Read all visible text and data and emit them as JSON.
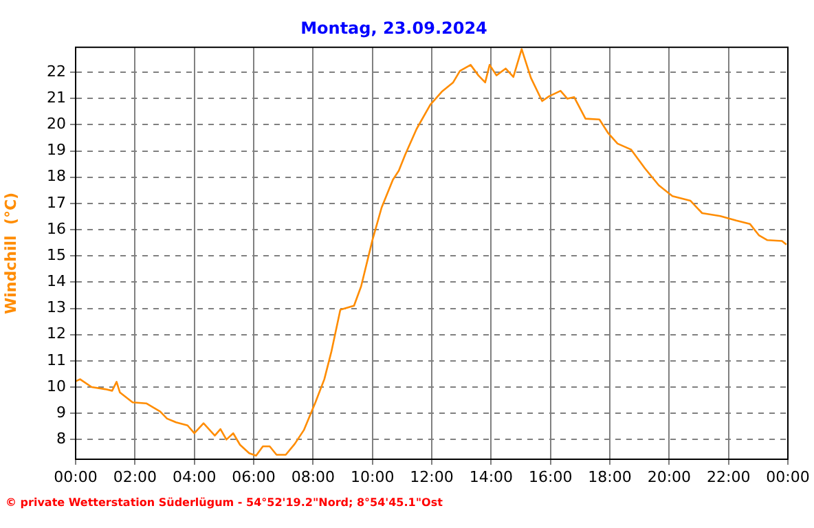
{
  "chart_data": {
    "type": "line",
    "title": "Montag, 23.09.2024",
    "ylabel": "Windchill  (°C)",
    "annotations": [
      "© private Wetterstation Süderlügum - 54°52'19.2\"Nord; 8°54'45.1\"Ost"
    ],
    "x": [
      0,
      0.15,
      0.54,
      1.0,
      1.23,
      1.38,
      1.49,
      1.92,
      2.38,
      2.85,
      3.08,
      3.38,
      3.77,
      4.0,
      4.31,
      4.69,
      4.88,
      5.08,
      5.31,
      5.54,
      5.85,
      6.08,
      6.31,
      6.54,
      6.77,
      7.08,
      7.38,
      7.69,
      8.08,
      8.38,
      8.62,
      8.92,
      9.38,
      9.62,
      10.0,
      10.31,
      10.69,
      10.89,
      11.11,
      11.49,
      11.95,
      12.34,
      12.72,
      12.95,
      13.31,
      13.57,
      13.8,
      13.95,
      14.18,
      14.49,
      14.75,
      15.03,
      15.34,
      15.72,
      15.95,
      16.34,
      16.57,
      16.8,
      17.18,
      17.65,
      17.95,
      18.26,
      18.72,
      19.18,
      19.65,
      20.11,
      20.72,
      21.11,
      21.72,
      22.26,
      22.72,
      23.03,
      23.31,
      23.8,
      23.95
    ],
    "series": [
      {
        "color": "#ff8c00",
        "values": [
          10.22,
          10.3,
          10.0,
          9.92,
          9.86,
          10.2,
          9.8,
          9.42,
          9.38,
          9.07,
          8.8,
          8.66,
          8.54,
          8.24,
          8.62,
          8.15,
          8.4,
          8.0,
          8.24,
          7.8,
          7.48,
          7.39,
          7.74,
          7.74,
          7.42,
          7.42,
          7.83,
          8.36,
          9.42,
          10.3,
          11.36,
          12.95,
          13.1,
          13.84,
          15.6,
          16.84,
          17.9,
          18.25,
          18.87,
          19.84,
          20.76,
          21.26,
          21.61,
          22.05,
          22.28,
          21.88,
          21.61,
          22.28,
          21.88,
          22.14,
          21.82,
          22.88,
          21.79,
          20.9,
          21.08,
          21.29,
          20.99,
          21.05,
          20.23,
          20.2,
          19.67,
          19.28,
          19.05,
          18.34,
          17.69,
          17.28,
          17.1,
          16.63,
          16.52,
          16.35,
          16.22,
          15.78,
          15.6,
          15.57,
          15.43
        ]
      }
    ],
    "xlim": [
      0,
      24
    ],
    "xticks": [
      {
        "value": 0,
        "label": "00:00"
      },
      {
        "value": 2,
        "label": "02:00"
      },
      {
        "value": 4,
        "label": "04:00"
      },
      {
        "value": 6,
        "label": "06:00"
      },
      {
        "value": 8,
        "label": "08:00"
      },
      {
        "value": 10,
        "label": "10:00"
      },
      {
        "value": 12,
        "label": "12:00"
      },
      {
        "value": 14,
        "label": "14:00"
      },
      {
        "value": 16,
        "label": "16:00"
      },
      {
        "value": 18,
        "label": "18:00"
      },
      {
        "value": 20,
        "label": "20:00"
      },
      {
        "value": 22,
        "label": "22:00"
      },
      {
        "value": 24,
        "label": "00:00"
      }
    ],
    "ylim": [
      7.25,
      22.95
    ],
    "yticks": [
      8,
      9,
      10,
      11,
      12,
      13,
      14,
      15,
      16,
      17,
      18,
      19,
      20,
      21,
      22
    ],
    "grid": true,
    "marker": "none",
    "line_style": "solid"
  }
}
